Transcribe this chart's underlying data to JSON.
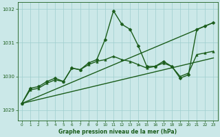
{
  "title": "Graphe pression niveau de la mer (hPa)",
  "bg_color": "#cbe8e8",
  "grid_color": "#9ecece",
  "line_color": "#1a5c1a",
  "xlim": [
    -0.5,
    23.5
  ],
  "ylim": [
    1028.7,
    1032.2
  ],
  "yticks": [
    1029,
    1030,
    1031,
    1032
  ],
  "xticks": [
    0,
    1,
    2,
    3,
    4,
    5,
    6,
    7,
    8,
    9,
    10,
    11,
    12,
    13,
    14,
    15,
    16,
    17,
    18,
    19,
    20,
    21,
    22,
    23
  ],
  "series": [
    {
      "x": [
        0,
        1,
        2,
        3,
        4,
        5,
        6,
        7,
        8,
        9,
        10,
        11,
        12,
        13,
        14,
        15,
        16,
        17,
        18,
        19,
        20,
        21,
        22,
        23
      ],
      "y": [
        1029.2,
        1029.65,
        1029.7,
        1029.85,
        1029.95,
        1029.85,
        1030.25,
        1030.2,
        1030.4,
        1030.5,
        1031.1,
        1031.95,
        1031.55,
        1031.4,
        1030.9,
        1030.3,
        1030.3,
        1030.45,
        1030.3,
        1029.95,
        1030.05,
        1031.4,
        1031.5,
        1031.6
      ],
      "marker": "D",
      "markersize": 2.5,
      "linewidth": 1.0
    },
    {
      "x": [
        0,
        23
      ],
      "y": [
        1029.2,
        1031.6
      ],
      "marker": null,
      "markersize": 0,
      "linewidth": 1.0
    },
    {
      "x": [
        0,
        23
      ],
      "y": [
        1029.2,
        1030.55
      ],
      "marker": null,
      "markersize": 0,
      "linewidth": 1.0
    },
    {
      "x": [
        0,
        1,
        2,
        3,
        4,
        5,
        6,
        7,
        8,
        9,
        10,
        11,
        12,
        13,
        14,
        15,
        16,
        17,
        18,
        19,
        20,
        21,
        22,
        23
      ],
      "y": [
        1029.2,
        1029.6,
        1029.65,
        1029.8,
        1029.9,
        1029.85,
        1030.25,
        1030.2,
        1030.35,
        1030.45,
        1030.5,
        1030.6,
        1030.5,
        1030.45,
        1030.35,
        1030.25,
        1030.3,
        1030.4,
        1030.3,
        1030.0,
        1030.1,
        1030.65,
        1030.7,
        1030.75
      ],
      "marker": "^",
      "markersize": 2.5,
      "linewidth": 1.0
    }
  ]
}
